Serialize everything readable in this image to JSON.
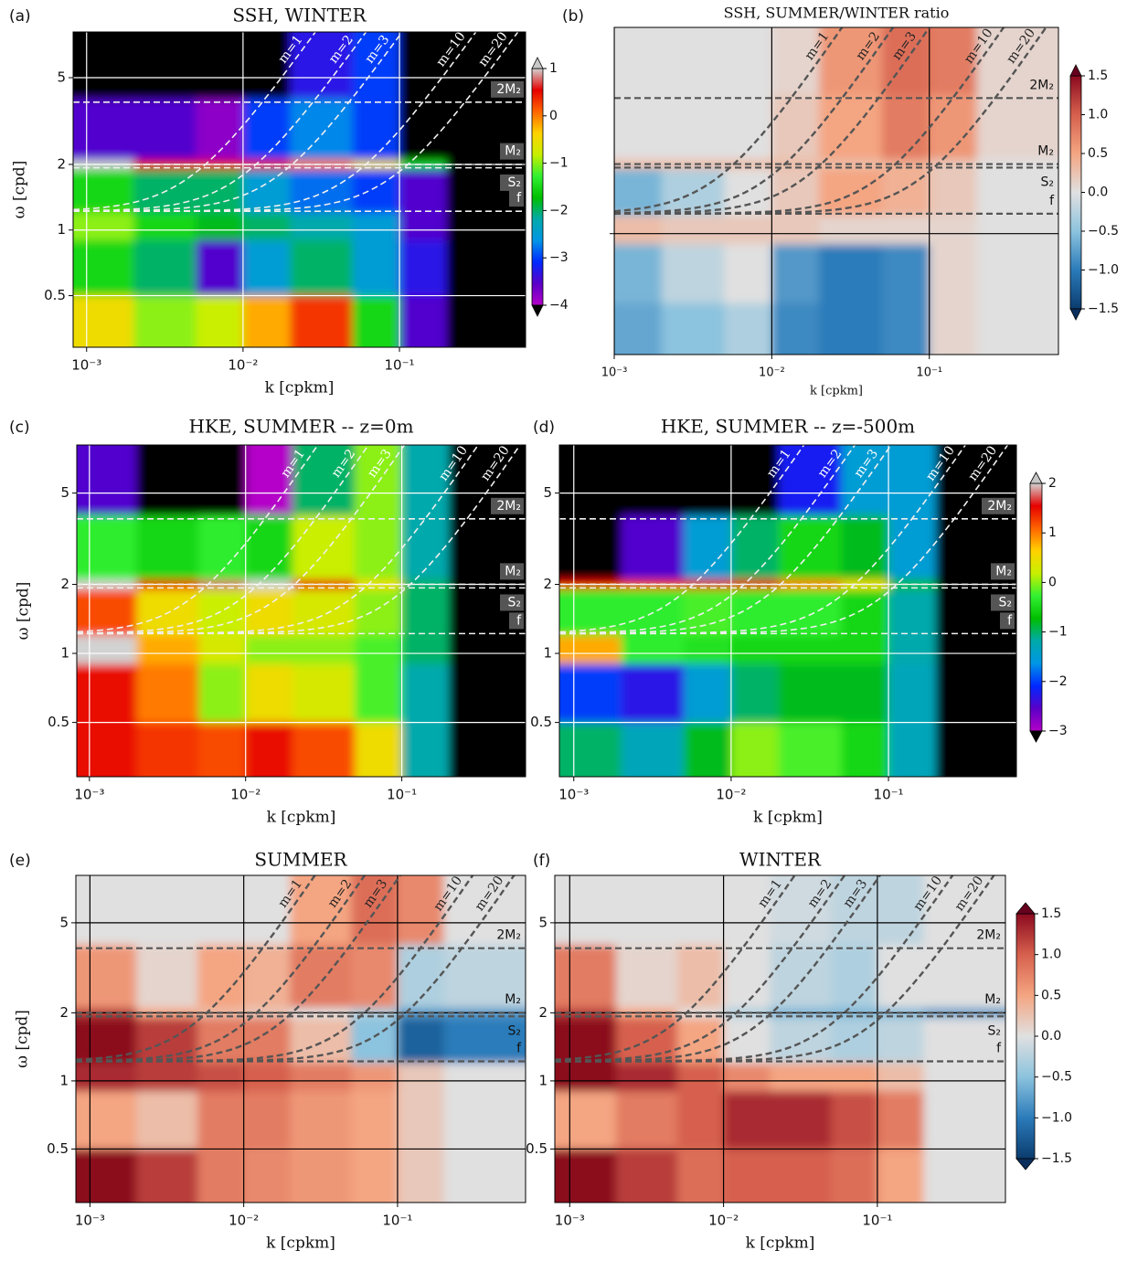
{
  "chart_data": [
    {
      "type": "heatmap",
      "panel_label": "(a)",
      "title": "SSH, WINTER",
      "xlabel": "k [cpkm]",
      "ylabel": "ω [cpd]",
      "log_x": true,
      "log_y": true,
      "grid": true,
      "style": "dark",
      "show_ytick_labels": true,
      "xlim": [
        0.00082,
        0.64
      ],
      "ylim": [
        0.29,
        8.1
      ],
      "xticks": [
        {
          "value": 0.001,
          "label": "10⁻³"
        },
        {
          "value": 0.01,
          "label": "10⁻²"
        },
        {
          "value": 0.1,
          "label": "10⁻¹"
        }
      ],
      "yticks": [
        0.5,
        1,
        2,
        5
      ],
      "x_bins": [
        0.00082,
        0.002,
        0.005,
        0.01,
        0.02,
        0.05,
        0.1,
        0.2,
        0.64
      ],
      "y_bins": [
        8.1,
        4,
        2.1,
        1.9,
        1.2,
        0.9,
        0.5,
        0.29
      ],
      "zlim": [
        -4,
        1
      ],
      "colormap": {
        "under": "#000000",
        "over": "#c8c8c8",
        "colors": [
          "#b400c8",
          "#5a00c8",
          "#0028ff",
          "#0096e6",
          "#00aaaa",
          "#00be00",
          "#32f032",
          "#c8f000",
          "#ffd200",
          "#ff6400",
          "#e60000",
          "#d2d2d2"
        ]
      },
      "z": [
        [
          -4.2,
          -4.5,
          -4.5,
          -4.5,
          -3.3,
          -3.0,
          -4.5,
          -4.5
        ],
        [
          -3.5,
          -3.5,
          -3.8,
          -3.0,
          -2.7,
          -3.0,
          -4.5,
          -4.5
        ],
        [
          1,
          0.5,
          0.5,
          0.5,
          0,
          -0.5,
          -1.5,
          -4.5
        ],
        [
          -1.5,
          -2.0,
          -2.0,
          -2.5,
          -2.8,
          -3.0,
          -3.5,
          -4.5
        ],
        [
          -1,
          -1.5,
          -1.8,
          -2.0,
          -2.2,
          -2.5,
          -3.5,
          -4.5
        ],
        [
          -1.5,
          -2,
          -3.5,
          -2.5,
          -2,
          -2.5,
          -3.3,
          -4.5
        ],
        [
          -0.5,
          -1,
          -0.8,
          -0.2,
          0.3,
          -1.5,
          -3.5,
          -4.5
        ]
      ],
      "hlines": [
        {
          "label": "2M₂",
          "value": 3.86
        },
        {
          "label": "M₂",
          "value": 1.93
        },
        {
          "label": "S₂",
          "value": 2.0
        },
        {
          "label": "f",
          "value": 1.22
        }
      ],
      "mode_curves": [
        {
          "label": "m=1",
          "scale": 276
        },
        {
          "label": "m=2",
          "scale": 131
        },
        {
          "label": "m=3",
          "scale": 77
        },
        {
          "label": "m=10",
          "scale": 26
        },
        {
          "label": "m=20",
          "scale": 14
        }
      ],
      "colorbar": {
        "ticks": [
          1,
          0,
          {
            "value": -1,
            "label": "−1"
          },
          {
            "value": -2,
            "label": "−2"
          },
          {
            "value": -3,
            "label": "−3"
          },
          {
            "value": -4,
            "label": "−4"
          }
        ]
      }
    },
    {
      "type": "heatmap",
      "panel_label": "(b)",
      "title": "SSH, SUMMER/WINTER ratio",
      "xlabel": "k [cpkm]",
      "log_x": true,
      "log_y": true,
      "grid": true,
      "style": "light",
      "show_ytick_labels": false,
      "xlim": [
        0.001,
        0.66
      ],
      "ylim": [
        0.3,
        7.8
      ],
      "xticks": [
        {
          "value": 0.001,
          "label": "10⁻³"
        },
        {
          "value": 0.01,
          "label": "10⁻²"
        },
        {
          "value": 0.1,
          "label": "10⁻¹"
        }
      ],
      "yticks": [
        1
      ],
      "x_bins": [
        0.001,
        0.002,
        0.005,
        0.01,
        0.02,
        0.05,
        0.1,
        0.2,
        0.66
      ],
      "y_bins": [
        7.8,
        4,
        2.1,
        1.9,
        1.2,
        0.9,
        0.5,
        0.3
      ],
      "zlim": [
        -1.5,
        1.5
      ],
      "colormap": {
        "under": "#0a2f5c",
        "over": "#67001f",
        "colors": [
          "#0b3c6e",
          "#2b7bba",
          "#8cc3de",
          "#e0e0e0",
          "#f4a582",
          "#d6604d",
          "#8b0a1f"
        ]
      },
      "z": [
        [
          0,
          0,
          0,
          0.1,
          0.6,
          0.9,
          0.8,
          0.1
        ],
        [
          0,
          0,
          0,
          0.2,
          0.5,
          0.8,
          0.6,
          0.1
        ],
        [
          0.3,
          0.3,
          0.3,
          0.3,
          0.3,
          0.4,
          0.2,
          0
        ],
        [
          -0.6,
          -0.3,
          0,
          0.2,
          0.5,
          0.4,
          0.2,
          0
        ],
        [
          0.3,
          0.2,
          0.2,
          0.2,
          0.1,
          0.1,
          0.1,
          0
        ],
        [
          -0.6,
          -0.2,
          0,
          -0.8,
          -1.0,
          -0.9,
          0.1,
          0
        ],
        [
          -0.7,
          -0.5,
          -0.3,
          -0.9,
          -1.0,
          -0.9,
          0.1,
          0
        ]
      ],
      "hlines": [
        {
          "label": "2M₂",
          "value": 3.86
        },
        {
          "label": "M₂",
          "value": 1.93
        },
        {
          "label": "S₂",
          "value": 2.0
        },
        {
          "label": "f",
          "value": 1.22
        }
      ],
      "mode_curves": [
        {
          "label": "m=1",
          "scale": 276
        },
        {
          "label": "m=2",
          "scale": 131
        },
        {
          "label": "m=3",
          "scale": 77
        },
        {
          "label": "m=10",
          "scale": 26
        },
        {
          "label": "m=20",
          "scale": 14
        }
      ],
      "colorbar": {
        "ticks": [
          {
            "value": 1.5,
            "label": "1.5"
          },
          {
            "value": 1,
            "label": "1.0"
          },
          {
            "value": 0.5,
            "label": "0.5"
          },
          {
            "value": 0,
            "label": "0.0"
          },
          {
            "value": -0.5,
            "label": "−0.5"
          },
          {
            "value": -1,
            "label": "−1.0"
          },
          {
            "value": -1.5,
            "label": "−1.5"
          }
        ]
      }
    },
    {
      "type": "heatmap",
      "panel_label": "(c)",
      "title": "HKE, SUMMER -- z=0m",
      "xlabel": "k [cpkm]",
      "ylabel": "ω [cpd]",
      "log_x": true,
      "log_y": true,
      "grid": true,
      "style": "dark",
      "show_ytick_labels": true,
      "xlim": [
        0.00083,
        0.62
      ],
      "ylim": [
        0.29,
        8.1
      ],
      "xticks": [
        {
          "value": 0.001,
          "label": "10⁻³"
        },
        {
          "value": 0.01,
          "label": "10⁻²"
        },
        {
          "value": 0.1,
          "label": "10⁻¹"
        }
      ],
      "yticks": [
        0.5,
        1,
        2,
        5
      ],
      "x_bins": [
        0.00083,
        0.002,
        0.005,
        0.01,
        0.02,
        0.05,
        0.1,
        0.2,
        0.62
      ],
      "y_bins": [
        8.1,
        4,
        2.1,
        1.9,
        1.2,
        0.9,
        0.5,
        0.29
      ],
      "zlim": [
        -3,
        2
      ],
      "colormap": {
        "under": "#000000",
        "over": "#c8c8c8",
        "colors": [
          "#b400c8",
          "#5a00c8",
          "#0028ff",
          "#0096e6",
          "#00aaaa",
          "#00be00",
          "#32f032",
          "#c8f000",
          "#ffd200",
          "#ff6400",
          "#e60000",
          "#d2d2d2"
        ]
      },
      "z": [
        [
          -2.5,
          -3.5,
          -3.5,
          -3,
          -1,
          0,
          -1.2,
          -3.5
        ],
        [
          -0.3,
          -0.5,
          -0.3,
          -0.5,
          0.2,
          0,
          -1.2,
          -3.5
        ],
        [
          2,
          1.5,
          1.8,
          2,
          1.5,
          0.5,
          -1,
          -3.5
        ],
        [
          1.2,
          0.5,
          0.2,
          0.5,
          0.3,
          0,
          -1,
          -3.5
        ],
        [
          2,
          0.8,
          0.3,
          0,
          0,
          -0.2,
          -1,
          -3.5
        ],
        [
          1.5,
          1,
          0,
          0.5,
          0.3,
          -0.2,
          -1.2,
          -3.5
        ],
        [
          1.5,
          1.3,
          1.2,
          1.5,
          1.2,
          0.5,
          -1.2,
          -3.5
        ]
      ],
      "hlines": [
        {
          "label": "2M₂",
          "value": 3.86
        },
        {
          "label": "M₂",
          "value": 1.93
        },
        {
          "label": "S₂",
          "value": 2.0
        },
        {
          "label": "f",
          "value": 1.22
        }
      ],
      "mode_curves": [
        {
          "label": "m=1",
          "scale": 276
        },
        {
          "label": "m=2",
          "scale": 131
        },
        {
          "label": "m=3",
          "scale": 77
        },
        {
          "label": "m=10",
          "scale": 26
        },
        {
          "label": "m=20",
          "scale": 14
        }
      ]
    },
    {
      "type": "heatmap",
      "panel_label": "(d)",
      "title": "HKE, SUMMER -- z=-500m",
      "xlabel": "k [cpkm]",
      "log_x": true,
      "log_y": true,
      "grid": true,
      "style": "dark",
      "show_ytick_labels": true,
      "xlim": [
        0.00081,
        0.65
      ],
      "ylim": [
        0.29,
        8.1
      ],
      "xticks": [
        {
          "value": 0.001,
          "label": "10⁻³"
        },
        {
          "value": 0.01,
          "label": "10⁻²"
        },
        {
          "value": 0.1,
          "label": "10⁻¹"
        }
      ],
      "yticks": [
        0.5,
        1,
        2,
        5
      ],
      "x_bins": [
        0.00081,
        0.002,
        0.005,
        0.01,
        0.02,
        0.05,
        0.1,
        0.2,
        0.65
      ],
      "y_bins": [
        8.1,
        4,
        2.1,
        1.9,
        1.2,
        0.9,
        0.5,
        0.29
      ],
      "zlim": [
        -3,
        2
      ],
      "colormap": {
        "under": "#000000",
        "over": "#c8c8c8",
        "colors": [
          "#b400c8",
          "#5a00c8",
          "#0028ff",
          "#0096e6",
          "#00aaaa",
          "#00be00",
          "#32f032",
          "#c8f000",
          "#ffd200",
          "#ff6400",
          "#e60000",
          "#d2d2d2"
        ]
      },
      "z": [
        [
          -3.5,
          -3.5,
          -3.5,
          -3.2,
          -2.2,
          -1.5,
          -1.5,
          -3.5
        ],
        [
          -3.3,
          -2.5,
          -1.5,
          -1,
          -0.5,
          -0.8,
          -1.5,
          -3.5
        ],
        [
          1.5,
          1.3,
          1.5,
          1.5,
          1,
          0.5,
          -0.8,
          -3.5
        ],
        [
          -0.3,
          -0.3,
          -0.2,
          -0.3,
          -0.3,
          -0.5,
          -1.2,
          -3.5
        ],
        [
          0.8,
          -0.3,
          -0.4,
          -0.5,
          -0.5,
          -0.5,
          -1.2,
          -3.5
        ],
        [
          -2,
          -2.3,
          -1.5,
          -1,
          -0.8,
          -0.8,
          -1.3,
          -3.5
        ],
        [
          -1,
          -1.3,
          -0.8,
          0,
          -0.2,
          -0.5,
          -1.3,
          -3.5
        ]
      ],
      "hlines": [
        {
          "label": "2M₂",
          "value": 3.86
        },
        {
          "label": "M₂",
          "value": 1.93
        },
        {
          "label": "S₂",
          "value": 2.0
        },
        {
          "label": "f",
          "value": 1.22
        }
      ],
      "mode_curves": [
        {
          "label": "m=1",
          "scale": 276
        },
        {
          "label": "m=2",
          "scale": 131
        },
        {
          "label": "m=3",
          "scale": 77
        },
        {
          "label": "m=10",
          "scale": 26
        },
        {
          "label": "m=20",
          "scale": 14
        }
      ],
      "colorbar": {
        "ticks": [
          2,
          1,
          0,
          {
            "value": -1,
            "label": "−1"
          },
          {
            "value": -2,
            "label": "−2"
          },
          {
            "value": -3,
            "label": "−3"
          }
        ]
      }
    },
    {
      "type": "heatmap",
      "panel_label": "(e)",
      "title": "SUMMER",
      "xlabel": "k [cpkm]",
      "ylabel": "ω [cpd]",
      "log_x": true,
      "log_y": true,
      "grid": true,
      "style": "light",
      "show_ytick_labels": true,
      "xlim": [
        0.00081,
        0.68
      ],
      "ylim": [
        0.29,
        8.1
      ],
      "xticks": [
        {
          "value": 0.001,
          "label": "10⁻³"
        },
        {
          "value": 0.01,
          "label": "10⁻²"
        },
        {
          "value": 0.1,
          "label": "10⁻¹"
        }
      ],
      "yticks": [
        0.5,
        1,
        2,
        5
      ],
      "x_bins": [
        0.00081,
        0.002,
        0.005,
        0.01,
        0.02,
        0.05,
        0.1,
        0.2,
        0.68
      ],
      "y_bins": [
        8.1,
        4,
        2.1,
        1.9,
        1.2,
        0.9,
        0.5,
        0.29
      ],
      "zlim": [
        -1.5,
        1.5
      ],
      "colormap": {
        "under": "#0a2f5c",
        "over": "#67001f",
        "colors": [
          "#0b3c6e",
          "#2b7bba",
          "#8cc3de",
          "#e0e0e0",
          "#f4a582",
          "#d6604d",
          "#8b0a1f"
        ]
      },
      "z": [
        [
          0,
          0,
          0,
          0,
          0.5,
          0.9,
          0.7,
          0
        ],
        [
          0.6,
          0.1,
          0.5,
          0.4,
          0.8,
          0.7,
          -0.3,
          -0.2
        ],
        [
          1.2,
          0.5,
          0.3,
          0.2,
          0,
          -0.3,
          -0.8,
          -0.8
        ],
        [
          1.5,
          1.2,
          0.8,
          0.8,
          0.3,
          -0.5,
          -1.2,
          -1
        ],
        [
          1.3,
          1.2,
          1.1,
          1.0,
          0.8,
          0.6,
          0.2,
          0
        ],
        [
          0.5,
          0.3,
          0.8,
          0.8,
          0.6,
          0.5,
          0.2,
          0
        ],
        [
          1.5,
          1.2,
          0.8,
          0.7,
          0.6,
          0.5,
          0.2,
          0
        ]
      ],
      "hlines": [
        {
          "label": "2M₂",
          "value": 3.86
        },
        {
          "label": "M₂",
          "value": 1.93
        },
        {
          "label": "S₂",
          "value": 2.0
        },
        {
          "label": "f",
          "value": 1.22
        }
      ],
      "mode_curves": [
        {
          "label": "m=1",
          "scale": 276
        },
        {
          "label": "m=2",
          "scale": 131
        },
        {
          "label": "m=3",
          "scale": 77
        },
        {
          "label": "m=10",
          "scale": 26
        },
        {
          "label": "m=20",
          "scale": 14
        }
      ]
    },
    {
      "type": "heatmap",
      "panel_label": "(f)",
      "title": "WINTER",
      "xlabel": "k [cpkm]",
      "log_x": true,
      "log_y": true,
      "grid": true,
      "style": "light",
      "show_ytick_labels": true,
      "xlim": [
        0.0008,
        0.68
      ],
      "ylim": [
        0.29,
        8.1
      ],
      "xticks": [
        {
          "value": 0.001,
          "label": "10⁻³"
        },
        {
          "value": 0.01,
          "label": "10⁻²"
        },
        {
          "value": 0.1,
          "label": "10⁻¹"
        }
      ],
      "yticks": [
        0.5,
        1,
        2,
        5
      ],
      "x_bins": [
        0.0008,
        0.002,
        0.005,
        0.01,
        0.02,
        0.05,
        0.1,
        0.2,
        0.68
      ],
      "y_bins": [
        8.1,
        4,
        2.1,
        1.9,
        1.2,
        0.9,
        0.5,
        0.29
      ],
      "zlim": [
        -1.5,
        1.5
      ],
      "colormap": {
        "under": "#0a2f5c",
        "over": "#67001f",
        "colors": [
          "#0b3c6e",
          "#2b7bba",
          "#8cc3de",
          "#e0e0e0",
          "#f4a582",
          "#d6604d",
          "#8b0a1f"
        ]
      },
      "z": [
        [
          0,
          0,
          0,
          0,
          -0.1,
          -0.2,
          -0.2,
          0
        ],
        [
          0.8,
          0.1,
          0.3,
          0,
          -0.2,
          -0.3,
          0,
          0
        ],
        [
          1.2,
          0.5,
          0,
          -0.3,
          -0.6,
          -0.6,
          -0.6,
          -0.8
        ],
        [
          1.5,
          1.0,
          0.5,
          0,
          -0.2,
          -0.3,
          -0.2,
          0
        ],
        [
          1.5,
          1.3,
          1.0,
          0.7,
          0.5,
          0.5,
          0.3,
          0
        ],
        [
          0.5,
          0.8,
          1.0,
          1.3,
          1.3,
          1.1,
          0.8,
          0
        ],
        [
          1.5,
          1.2,
          0.9,
          1.0,
          1.0,
          0.9,
          0.5,
          0
        ]
      ],
      "hlines": [
        {
          "label": "2M₂",
          "value": 3.86
        },
        {
          "label": "M₂",
          "value": 1.93
        },
        {
          "label": "S₂",
          "value": 2.0
        },
        {
          "label": "f",
          "value": 1.22
        }
      ],
      "mode_curves": [
        {
          "label": "m=1",
          "scale": 276
        },
        {
          "label": "m=2",
          "scale": 131
        },
        {
          "label": "m=3",
          "scale": 77
        },
        {
          "label": "m=10",
          "scale": 26
        },
        {
          "label": "m=20",
          "scale": 14
        }
      ],
      "colorbar": {
        "ticks": [
          {
            "value": 1.5,
            "label": "1.5"
          },
          {
            "value": 1,
            "label": "1.0"
          },
          {
            "value": 0.5,
            "label": "0.5"
          },
          {
            "value": 0,
            "label": "0.0"
          },
          {
            "value": -0.5,
            "label": "−0.5"
          },
          {
            "value": -1,
            "label": "−1.0"
          },
          {
            "value": -1.5,
            "label": "−1.5"
          }
        ]
      }
    }
  ]
}
